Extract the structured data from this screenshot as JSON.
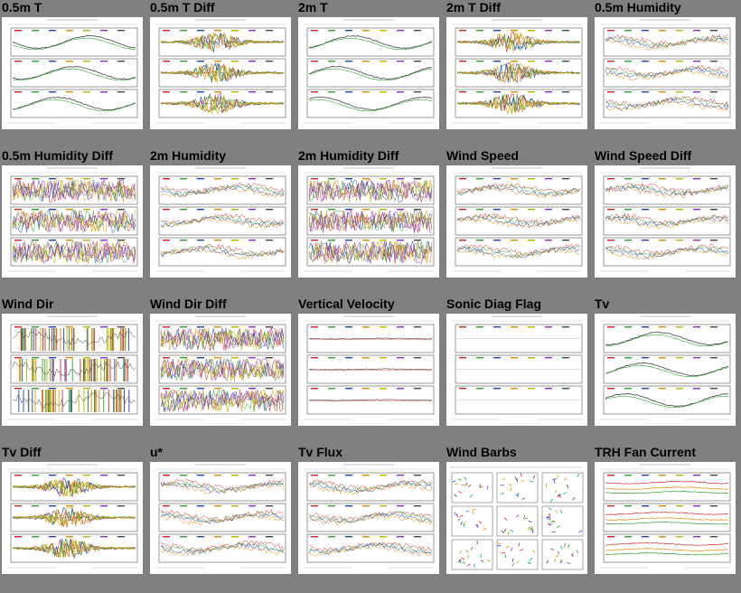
{
  "page": {
    "background": "#808080"
  },
  "palette": [
    "#d62728",
    "#2ca02c",
    "#1f3fbf",
    "#e08a00",
    "#b5b500",
    "#8a2be2",
    "#444444",
    "#00a0a0"
  ],
  "plots": [
    {
      "title": "0.5m T",
      "style": "smooth"
    },
    {
      "title": "0.5m T Diff",
      "style": "diff"
    },
    {
      "title": "2m T",
      "style": "smooth"
    },
    {
      "title": "2m T Diff",
      "style": "diff"
    },
    {
      "title": "0.5m Humidity",
      "style": "band"
    },
    {
      "title": "0.5m Humidity Diff",
      "style": "noisy"
    },
    {
      "title": "2m Humidity",
      "style": "band"
    },
    {
      "title": "2m Humidity Diff",
      "style": "noisy"
    },
    {
      "title": "Wind Speed",
      "style": "band"
    },
    {
      "title": "Wind Speed Diff",
      "style": "band"
    },
    {
      "title": "Wind Dir",
      "style": "spikes"
    },
    {
      "title": "Wind Dir Diff",
      "style": "noisy"
    },
    {
      "title": "Vertical Velocity",
      "style": "flat"
    },
    {
      "title": "Sonic Diag Flag",
      "style": "empty"
    },
    {
      "title": "Tv",
      "style": "smooth"
    },
    {
      "title": "Tv Diff",
      "style": "diff"
    },
    {
      "title": "u*",
      "style": "band"
    },
    {
      "title": "Tv Flux",
      "style": "band"
    },
    {
      "title": "Wind Barbs",
      "style": "barbs"
    },
    {
      "title": "TRH Fan Current",
      "style": "fan"
    }
  ]
}
